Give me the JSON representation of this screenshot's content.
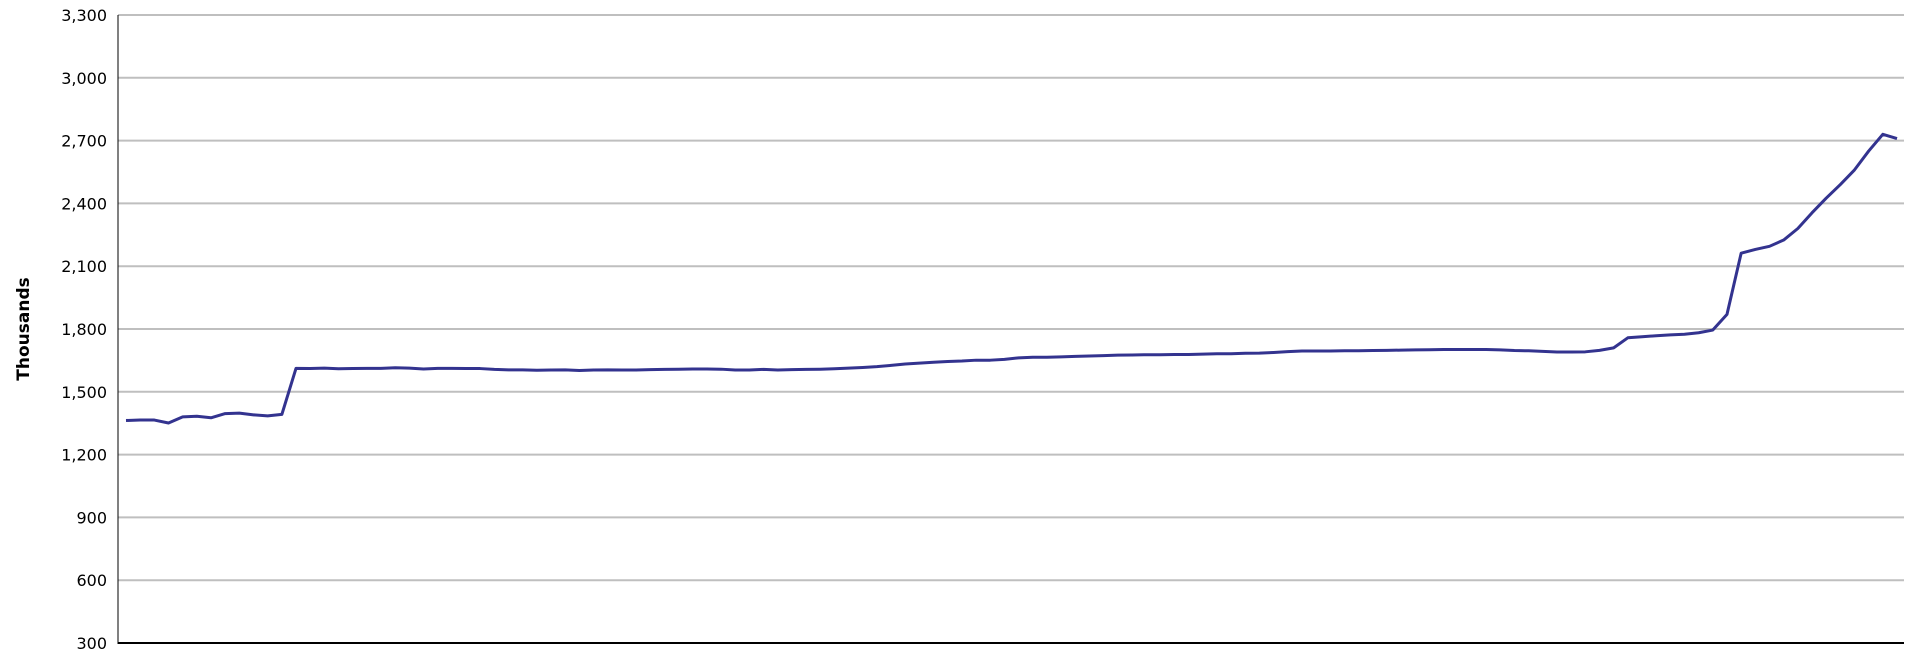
{
  "chart_data": {
    "type": "line",
    "title": "",
    "xlabel": "",
    "ylabel": "Thousands",
    "ylim": [
      300,
      3300
    ],
    "yticks": [
      300,
      600,
      900,
      1200,
      1500,
      1800,
      2100,
      2400,
      2700,
      3000,
      3300
    ],
    "ytick_labels": [
      "300",
      "600",
      "900",
      "1,200",
      "1,500",
      "1,800",
      "2,100",
      "2,400",
      "2,700",
      "3,000",
      "3,300"
    ],
    "grid": true,
    "legend": "none",
    "colors": {
      "line": "#33338f",
      "grid": "#bfbfbf",
      "axis": "#000000"
    },
    "series": [
      {
        "values": [
          1363,
          1365,
          1365,
          1351,
          1380,
          1383,
          1376,
          1396,
          1398,
          1390,
          1385,
          1392,
          1612,
          1611,
          1613,
          1610,
          1611,
          1612,
          1612,
          1615,
          1613,
          1609,
          1612,
          1612,
          1611,
          1611,
          1607,
          1605,
          1605,
          1603,
          1604,
          1605,
          1602,
          1604,
          1605,
          1604,
          1604,
          1606,
          1607,
          1608,
          1609,
          1609,
          1608,
          1604,
          1604,
          1607,
          1604,
          1606,
          1607,
          1608,
          1610,
          1613,
          1616,
          1620,
          1626,
          1633,
          1637,
          1641,
          1645,
          1647,
          1651,
          1651,
          1655,
          1662,
          1665,
          1665,
          1667,
          1669,
          1671,
          1673,
          1675,
          1676,
          1677,
          1677,
          1678,
          1678,
          1680,
          1682,
          1682,
          1684,
          1685,
          1688,
          1692,
          1695,
          1695,
          1695,
          1696,
          1696,
          1697,
          1698,
          1699,
          1700,
          1701,
          1702,
          1702,
          1702,
          1702,
          1700,
          1697,
          1696,
          1693,
          1690,
          1690,
          1691,
          1698,
          1710,
          1758,
          1763,
          1768,
          1772,
          1775,
          1782,
          1795,
          1870,
          2162,
          2180,
          2195,
          2225,
          2280,
          2355,
          2425,
          2490,
          2560,
          2650,
          2730,
          2710
        ]
      }
    ]
  }
}
